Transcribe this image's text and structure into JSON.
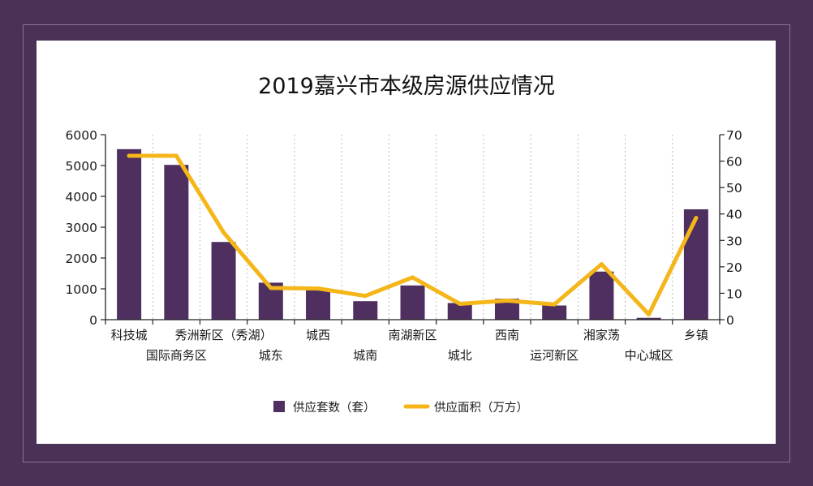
{
  "chart_data": {
    "type": "bar",
    "title": "2019嘉兴市本级房源供应情况",
    "categories": [
      "科技城",
      "国际商务区",
      "秀洲新区（秀湖）",
      "城东",
      "城西",
      "城南",
      "南湖新区",
      "城北",
      "西南",
      "运河新区",
      "湘家荡",
      "中心城区",
      "乡镇"
    ],
    "series": [
      {
        "name": "供应套数（套）",
        "type": "bar",
        "axis": "left",
        "color": "#4e2f5f",
        "values": [
          5530,
          5020,
          2520,
          1200,
          950,
          600,
          1110,
          540,
          680,
          460,
          1560,
          60,
          3580
        ]
      },
      {
        "name": "供应面积（万方）",
        "type": "line",
        "axis": "right",
        "color": "#f4b619",
        "values": [
          62,
          62,
          33,
          12,
          11.8,
          9,
          16,
          6,
          7.2,
          5.8,
          21,
          2,
          38.5
        ]
      }
    ],
    "y_left": {
      "min": 0,
      "max": 6000,
      "ticks": [
        0,
        1000,
        2000,
        3000,
        4000,
        5000,
        6000
      ]
    },
    "y_right": {
      "min": 0,
      "max": 70,
      "ticks": [
        0,
        10,
        20,
        30,
        40,
        50,
        60,
        70
      ]
    },
    "grid": "vertical-dotted",
    "legend_position": "bottom"
  }
}
